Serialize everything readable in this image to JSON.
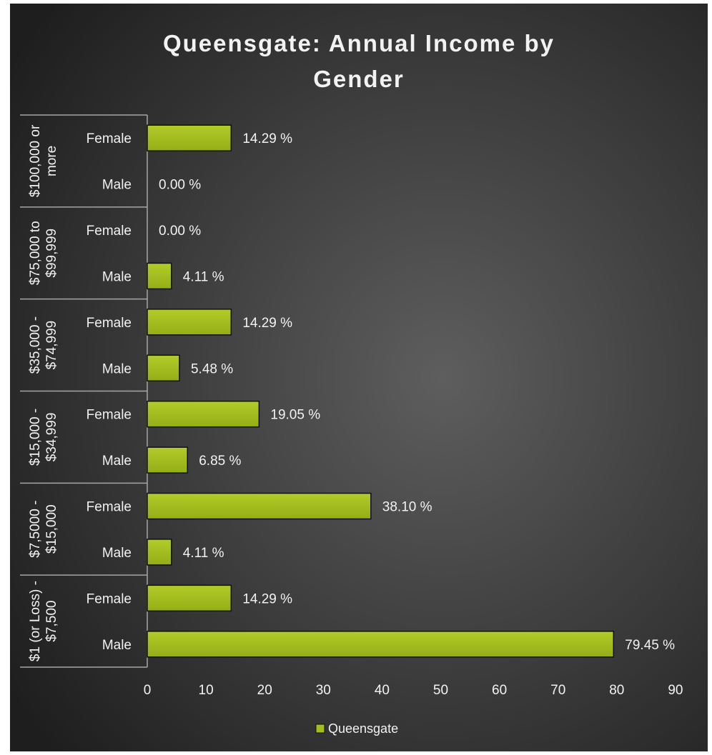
{
  "chart_data": {
    "type": "bar",
    "orientation": "horizontal",
    "title": "Queensgate: Annual Income by Gender",
    "title_lines": [
      "Queensgate: Annual Income by",
      "Gender"
    ],
    "groups": [
      {
        "label": "$100,000 or more",
        "label_lines": [
          "$100,000 or",
          "more"
        ],
        "categories": [
          "Female",
          "Male"
        ],
        "values": [
          14.29,
          0.0
        ],
        "data_labels": [
          "14.29 %",
          "0.00 %"
        ]
      },
      {
        "label": "$75,000 to $99,999",
        "label_lines": [
          "$75,000 to",
          "$99,999"
        ],
        "categories": [
          "Female",
          "Male"
        ],
        "values": [
          0.0,
          4.11
        ],
        "data_labels": [
          "0.00 %",
          "4.11 %"
        ]
      },
      {
        "label": "$35,000 - $74,999",
        "label_lines": [
          "$35,000 -",
          "$74,999"
        ],
        "categories": [
          "Female",
          "Male"
        ],
        "values": [
          14.29,
          5.48
        ],
        "data_labels": [
          "14.29 %",
          "5.48 %"
        ]
      },
      {
        "label": "$15,000 - $34,999",
        "label_lines": [
          "$15,000 -",
          "$34,999"
        ],
        "categories": [
          "Female",
          "Male"
        ],
        "values": [
          19.05,
          6.85
        ],
        "data_labels": [
          "19.05 %",
          "6.85 %"
        ]
      },
      {
        "label": "$7,5000 - $15,000",
        "label_lines": [
          "$7,5000 -",
          "$15,000"
        ],
        "categories": [
          "Female",
          "Male"
        ],
        "values": [
          38.1,
          4.11
        ],
        "data_labels": [
          "38.10 %",
          "4.11 %"
        ]
      },
      {
        "label": "$1 (or Loss) - $7,500",
        "label_lines": [
          "$1 (or Loss) -",
          "$7,500"
        ],
        "categories": [
          "Female",
          "Male"
        ],
        "values": [
          14.29,
          79.45
        ],
        "data_labels": [
          "14.29 %",
          "79.45 %"
        ]
      }
    ],
    "series": [
      {
        "name": "Queensgate"
      }
    ],
    "x_ticks": [
      "0",
      "10",
      "20",
      "30",
      "40",
      "50",
      "60",
      "70",
      "80",
      "90"
    ],
    "xlim": [
      0,
      90
    ],
    "grid": false,
    "legend": {
      "position": "bottom",
      "entries": [
        "Queensgate"
      ]
    },
    "colors": {
      "bar_fill": "#a4be1e",
      "bar_edge": "#111111",
      "background_center": "#5e5e5e",
      "background_edge": "#1e1e1e",
      "text": "#f2f2f2",
      "axis_line": "#a6a6a6"
    }
  }
}
